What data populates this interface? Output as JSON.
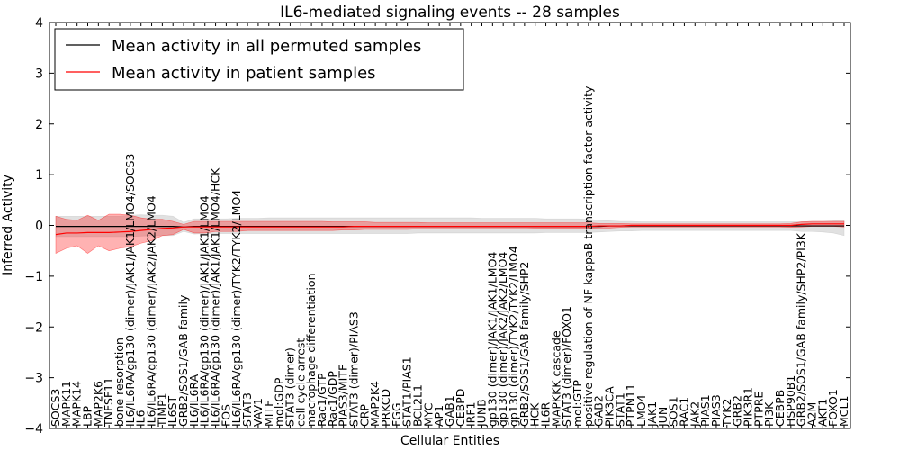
{
  "chart_data": {
    "type": "line",
    "title": "IL6-mediated signaling events -- 28 samples",
    "xlabel": "Cellular Entities",
    "ylabel": "Inferred Activity",
    "ylim": [
      -4,
      4
    ],
    "yticks": [
      "4",
      "3",
      "2",
      "1",
      "0",
      "−1",
      "−2",
      "−3",
      "−4"
    ],
    "grid": false,
    "legend_position": "top-left",
    "categories": [
      "SOCS3",
      "MAPK11",
      "MAPK14",
      "LBP",
      "MAP2K6",
      "TNFSF11",
      "bone resorption",
      "IL6/IL6RA/gp130 (dimer)/JAK1/JAK1/LMO4/SOCS3",
      "IL6",
      "IL6/IL6RA/gp130 (dimer)/JAK2/JAK2/LMO4",
      "TIMP1",
      "IL6ST",
      "GRB2/SOS1/GAB family",
      "IL6/IL6RA",
      "IL6/IL6RA/gp130 (dimer)/JAK1/JAK1/LMO4",
      "IL6/IL6RA/gp130 (dimer)/JAK1/JAK1/LMO4/HCK",
      "FOS",
      "IL6/IL6RA/gp130 (dimer)/TYK2/TYK2/LMO4",
      "STAT3",
      "VAV1",
      "MITF",
      "mol:GDP",
      "STAT3 (dimer)",
      "cell cycle arrest",
      "macrophage differentiation",
      "Rac1/GTP",
      "Rac1/GDP",
      "PIAS3/MITF",
      "STAT3 (dimer)/PIAS3",
      "CRP",
      "MAP2K4",
      "PRKCD",
      "FGG",
      "STAT1/PIAS1",
      "BCL2L1",
      "MYC",
      "AP1",
      "GAB1",
      "CEBPD",
      "IRF1",
      "JUNB",
      "gp130 (dimer)/JAK1/JAK1/LMO4",
      "gp130 (dimer)/JAK2/JAK2/LMO4",
      "gp130 (dimer)/TYK2/TYK2/LMO4",
      "GRB2/SOS1/GAB family/SHP2",
      "HCK",
      "IL6R",
      "MAPKKK cascade",
      "STAT3 (dimer)/FOXO1",
      "mol:GTP",
      "positive regulation of NF-kappaB transcription factor activity",
      "GAB2",
      "PIK3CA",
      "STAT1",
      "PTPN11",
      "LMO4",
      "JAK1",
      "JUN",
      "SOS1",
      "RAC1",
      "JAK2",
      "PIAS1",
      "PIAS3",
      "TYK2",
      "GRB2",
      "PIK3R1",
      "PTPRE",
      "PI3K",
      "CEBPB",
      "HSP90B1",
      "GRB2/SOS1/GAB family/SHP2/PI3K",
      "A2M",
      "AKT1",
      "FOXO1",
      "MCL1"
    ],
    "series": [
      {
        "name": "Mean activity in all permuted samples",
        "color": "#000000",
        "values": [
          -0.02,
          -0.02,
          -0.02,
          -0.02,
          -0.02,
          -0.02,
          -0.02,
          -0.02,
          -0.02,
          -0.02,
          -0.02,
          -0.02,
          -0.03,
          -0.02,
          -0.02,
          -0.02,
          -0.02,
          -0.02,
          -0.02,
          -0.02,
          -0.02,
          -0.02,
          -0.02,
          -0.02,
          -0.02,
          -0.02,
          -0.02,
          -0.02,
          -0.02,
          -0.02,
          -0.02,
          -0.02,
          -0.02,
          -0.02,
          -0.02,
          -0.02,
          -0.02,
          -0.02,
          -0.02,
          -0.02,
          -0.02,
          -0.02,
          -0.02,
          -0.02,
          -0.02,
          -0.02,
          -0.02,
          -0.02,
          -0.02,
          -0.02,
          -0.02,
          -0.02,
          -0.01,
          -0.01,
          -0.01,
          -0.01,
          -0.01,
          -0.01,
          -0.01,
          -0.01,
          -0.01,
          -0.01,
          -0.01,
          -0.01,
          -0.01,
          -0.01,
          -0.01,
          -0.01,
          -0.01,
          -0.01,
          -0.01,
          -0.01,
          -0.01,
          -0.01,
          -0.01
        ],
        "band_lower": [
          -0.22,
          -0.22,
          -0.22,
          -0.22,
          -0.22,
          -0.22,
          -0.22,
          -0.22,
          -0.21,
          -0.2,
          -0.2,
          -0.2,
          -0.12,
          -0.17,
          -0.16,
          -0.16,
          -0.16,
          -0.16,
          -0.16,
          -0.16,
          -0.16,
          -0.16,
          -0.16,
          -0.16,
          -0.16,
          -0.16,
          -0.16,
          -0.16,
          -0.16,
          -0.16,
          -0.16,
          -0.16,
          -0.16,
          -0.16,
          -0.15,
          -0.15,
          -0.15,
          -0.15,
          -0.15,
          -0.15,
          -0.15,
          -0.15,
          -0.15,
          -0.15,
          -0.15,
          -0.15,
          -0.14,
          -0.14,
          -0.14,
          -0.14,
          -0.14,
          -0.13,
          -0.12,
          -0.11,
          -0.11,
          -0.1,
          -0.1,
          -0.1,
          -0.1,
          -0.1,
          -0.1,
          -0.1,
          -0.1,
          -0.1,
          -0.1,
          -0.1,
          -0.1,
          -0.1,
          -0.1,
          -0.1,
          -0.12,
          -0.12,
          -0.13,
          -0.15,
          -0.2
        ],
        "band_upper": [
          0.18,
          0.18,
          0.18,
          0.18,
          0.18,
          0.18,
          0.18,
          0.2,
          0.21,
          0.2,
          0.2,
          0.18,
          0.06,
          0.13,
          0.13,
          0.13,
          0.13,
          0.14,
          0.14,
          0.14,
          0.15,
          0.15,
          0.15,
          0.15,
          0.15,
          0.15,
          0.15,
          0.15,
          0.15,
          0.15,
          0.15,
          0.15,
          0.15,
          0.15,
          0.15,
          0.15,
          0.15,
          0.15,
          0.15,
          0.15,
          0.14,
          0.14,
          0.14,
          0.14,
          0.14,
          0.14,
          0.13,
          0.13,
          0.13,
          0.13,
          0.12,
          0.1,
          0.09,
          0.08,
          0.08,
          0.07,
          0.07,
          0.07,
          0.07,
          0.07,
          0.07,
          0.07,
          0.07,
          0.07,
          0.07,
          0.07,
          0.07,
          0.07,
          0.07,
          0.07,
          0.07,
          0.08,
          0.08,
          0.09,
          0.1
        ]
      },
      {
        "name": "Mean activity in patient samples",
        "color": "#ff0000",
        "values": [
          -0.18,
          -0.15,
          -0.15,
          -0.14,
          -0.14,
          -0.14,
          -0.13,
          -0.12,
          -0.1,
          -0.08,
          -0.06,
          -0.05,
          -0.03,
          -0.03,
          -0.03,
          -0.03,
          -0.03,
          -0.03,
          -0.03,
          -0.03,
          -0.03,
          -0.03,
          -0.03,
          -0.03,
          -0.03,
          -0.03,
          -0.03,
          -0.03,
          -0.02,
          -0.02,
          -0.02,
          -0.02,
          -0.02,
          -0.02,
          -0.02,
          -0.02,
          -0.02,
          -0.02,
          -0.02,
          -0.02,
          -0.02,
          -0.02,
          -0.02,
          -0.02,
          -0.02,
          -0.02,
          -0.02,
          -0.02,
          -0.02,
          -0.02,
          -0.02,
          -0.01,
          -0.01,
          -0.01,
          0.0,
          0.0,
          0.0,
          0.0,
          0.0,
          0.0,
          0.0,
          0.0,
          0.0,
          0.0,
          0.0,
          0.0,
          0.0,
          0.0,
          0.0,
          0.0,
          0.02,
          0.03,
          0.03,
          0.03,
          0.03
        ],
        "band_lower": [
          -0.55,
          -0.45,
          -0.4,
          -0.55,
          -0.4,
          -0.5,
          -0.45,
          -0.42,
          -0.35,
          -0.3,
          -0.2,
          -0.18,
          -0.08,
          -0.15,
          -0.15,
          -0.12,
          -0.12,
          -0.12,
          -0.1,
          -0.1,
          -0.1,
          -0.1,
          -0.1,
          -0.1,
          -0.1,
          -0.1,
          -0.1,
          -0.09,
          -0.09,
          -0.08,
          -0.08,
          -0.08,
          -0.08,
          -0.08,
          -0.07,
          -0.07,
          -0.07,
          -0.07,
          -0.07,
          -0.07,
          -0.07,
          -0.07,
          -0.07,
          -0.07,
          -0.07,
          -0.06,
          -0.06,
          -0.06,
          -0.06,
          -0.06,
          -0.06,
          -0.05,
          -0.05,
          -0.04,
          -0.03,
          -0.03,
          -0.03,
          -0.03,
          -0.03,
          -0.03,
          -0.03,
          -0.03,
          -0.03,
          -0.03,
          -0.03,
          -0.03,
          -0.03,
          -0.03,
          -0.03,
          -0.04,
          -0.03,
          -0.02,
          -0.02,
          -0.02,
          -0.03
        ],
        "band_upper": [
          0.18,
          0.12,
          0.1,
          0.2,
          0.1,
          0.22,
          0.22,
          0.2,
          0.15,
          0.12,
          0.12,
          0.08,
          0.02,
          0.08,
          0.08,
          0.08,
          0.08,
          0.08,
          0.08,
          0.08,
          0.08,
          0.08,
          0.08,
          0.08,
          0.08,
          0.08,
          0.07,
          0.07,
          0.07,
          0.07,
          0.06,
          0.06,
          0.06,
          0.06,
          0.06,
          0.05,
          0.05,
          0.05,
          0.05,
          0.05,
          0.05,
          0.05,
          0.05,
          0.05,
          0.05,
          0.05,
          0.05,
          0.05,
          0.05,
          0.05,
          0.05,
          0.04,
          0.04,
          0.04,
          0.03,
          0.03,
          0.03,
          0.03,
          0.03,
          0.03,
          0.03,
          0.03,
          0.03,
          0.03,
          0.03,
          0.03,
          0.03,
          0.03,
          0.03,
          0.04,
          0.07,
          0.08,
          0.08,
          0.08,
          0.08
        ]
      }
    ]
  }
}
